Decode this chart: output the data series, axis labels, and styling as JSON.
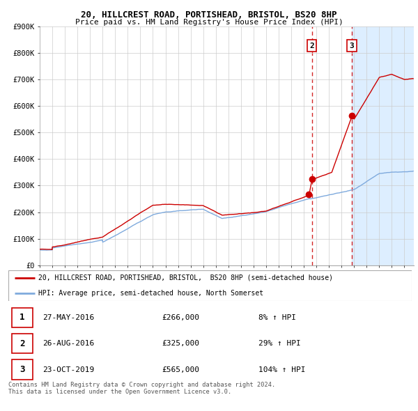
{
  "title_line1": "20, HILLCREST ROAD, PORTISHEAD, BRISTOL, BS20 8HP",
  "title_line2": "Price paid vs. HM Land Registry's House Price Index (HPI)",
  "ylim": [
    0,
    900000
  ],
  "xlim_start": 1995.0,
  "xlim_end": 2024.75,
  "yticks": [
    0,
    100000,
    200000,
    300000,
    400000,
    500000,
    600000,
    700000,
    800000,
    900000
  ],
  "ytick_labels": [
    "£0",
    "£100K",
    "£200K",
    "£300K",
    "£400K",
    "£500K",
    "£600K",
    "£700K",
    "£800K",
    "£900K"
  ],
  "sale_events": [
    {
      "date_num": 2016.41,
      "price": 266000,
      "label": "1",
      "show_vline": false
    },
    {
      "date_num": 2016.65,
      "price": 325000,
      "label": "2",
      "show_vline": true
    },
    {
      "date_num": 2019.81,
      "price": 565000,
      "label": "3",
      "show_vline": true
    }
  ],
  "legend_line1": "20, HILLCREST ROAD, PORTISHEAD, BRISTOL,  BS20 8HP (semi-detached house)",
  "legend_line2": "HPI: Average price, semi-detached house, North Somerset",
  "table_rows": [
    {
      "num": "1",
      "date": "27-MAY-2016",
      "price": "£266,000",
      "pct": "8% ↑ HPI"
    },
    {
      "num": "2",
      "date": "26-AUG-2016",
      "price": "£325,000",
      "pct": "29% ↑ HPI"
    },
    {
      "num": "3",
      "date": "23-OCT-2019",
      "price": "£565,000",
      "pct": "104% ↑ HPI"
    }
  ],
  "footnote1": "Contains HM Land Registry data © Crown copyright and database right 2024.",
  "footnote2": "This data is licensed under the Open Government Licence v3.0.",
  "red_line_color": "#cc0000",
  "blue_line_color": "#7faadd",
  "marker_color": "#cc0000",
  "highlight_bg": "#ddeeff",
  "white_bg": "#ffffff",
  "grid_color": "#cccccc",
  "highlight_start": 2019.81
}
